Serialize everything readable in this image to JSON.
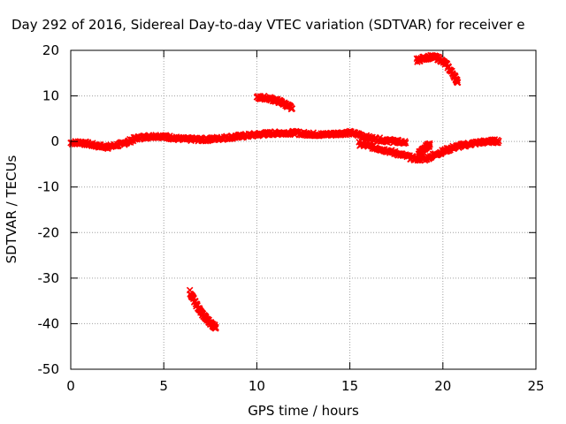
{
  "chart_data": {
    "type": "scatter",
    "title": "Day 292 of 2016, Sidereal Day-to-day VTEC variation (SDTVAR) for receiver e",
    "xlabel": "GPS time / hours",
    "ylabel": "SDTVAR / TECUs",
    "xlim": [
      0,
      25
    ],
    "ylim": [
      -50,
      20
    ],
    "xticks": [
      0,
      5,
      10,
      15,
      20,
      25
    ],
    "yticks": [
      -50,
      -40,
      -30,
      -20,
      -10,
      0,
      10,
      20
    ],
    "xtick_labels": [
      "0",
      "5",
      "10",
      "15",
      "20",
      "25"
    ],
    "ytick_labels": [
      "-50",
      "-40",
      "-30",
      "-20",
      "-10",
      "0",
      "10",
      "20"
    ],
    "grid": true,
    "marker_color": "#ff0000",
    "series": [
      {
        "name": "main-band-a",
        "x": [
          0.0,
          0.5,
          1.0,
          1.5,
          2.0,
          2.5,
          3.0,
          3.5,
          4.0,
          4.5,
          5.0,
          5.5,
          6.0,
          6.5,
          7.0,
          7.5,
          8.0,
          8.5,
          9.0,
          9.5,
          10.0,
          10.5,
          11.0,
          11.5,
          12.0,
          12.5,
          13.0,
          13.5,
          14.0,
          14.5,
          15.0,
          15.5,
          16.0,
          16.5,
          17.0,
          17.5,
          18.0
        ],
        "y": [
          -0.3,
          -0.2,
          -0.6,
          -1.0,
          -1.2,
          -0.8,
          -0.2,
          0.7,
          1.0,
          1.2,
          1.1,
          0.8,
          0.5,
          0.5,
          0.4,
          0.5,
          0.7,
          0.9,
          1.1,
          1.3,
          1.5,
          1.7,
          1.8,
          1.9,
          1.9,
          1.7,
          1.6,
          1.5,
          1.6,
          1.8,
          1.9,
          1.5,
          0.8,
          0.5,
          0.2,
          0.0,
          -0.3
        ]
      },
      {
        "name": "main-band-b",
        "x": [
          15.5,
          16.0,
          16.5,
          17.0,
          17.5,
          18.0,
          18.5,
          19.0,
          19.5,
          20.0,
          20.5,
          21.0,
          21.5,
          22.0,
          22.5,
          23.0
        ],
        "y": [
          -0.5,
          -1.0,
          -1.5,
          -2.0,
          -2.6,
          -3.2,
          -3.8,
          -3.9,
          -3.0,
          -2.2,
          -1.4,
          -0.9,
          -0.5,
          -0.2,
          0.0,
          0.1
        ]
      },
      {
        "name": "arc-near-19h",
        "x": [
          18.7,
          18.9,
          19.1,
          19.3
        ],
        "y": [
          -2.7,
          -1.8,
          -1.2,
          -0.7
        ]
      },
      {
        "name": "arc-10h",
        "x": [
          10.0,
          10.4,
          10.8,
          11.2,
          11.6,
          11.9
        ],
        "y": [
          9.6,
          9.6,
          9.3,
          8.8,
          8.0,
          7.2
        ]
      },
      {
        "name": "arc-19h",
        "x": [
          18.6,
          19.0,
          19.4,
          19.8,
          20.2,
          20.6,
          20.8
        ],
        "y": [
          17.8,
          18.3,
          18.6,
          18.2,
          16.8,
          14.5,
          13.0
        ]
      },
      {
        "name": "arc-6h",
        "x": [
          6.4,
          6.7,
          7.0,
          7.3,
          7.6,
          7.8
        ],
        "y": [
          -33.0,
          -35.5,
          -37.5,
          -39.0,
          -40.2,
          -40.8
        ]
      }
    ]
  }
}
